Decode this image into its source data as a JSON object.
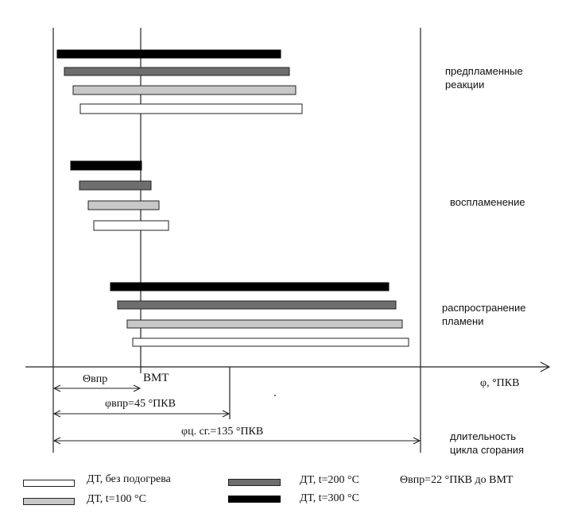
{
  "chart_data": {
    "type": "gantt",
    "x_axis_label": "φ, °ПКВ",
    "reference_label": "ВМТ",
    "groups": [
      {
        "name": "предпламенные реакции",
        "label_lines": [
          "предпламенные",
          "реакции"
        ]
      },
      {
        "name": "воспламенение",
        "label_lines": [
          "воспламенение"
        ]
      },
      {
        "name": "распространение пламени",
        "label_lines": [
          "распространение",
          "пламени"
        ]
      }
    ],
    "series": [
      {
        "name": "ДТ, без подогрева",
        "color": "#ffffff"
      },
      {
        "name": "ДТ, t=100 °C",
        "color": "#c8c8c8"
      },
      {
        "name": "ДТ, t=200 °C",
        "color": "#6e6e6e"
      },
      {
        "name": "ДТ, t=300 °C",
        "color": "#000000"
      }
    ],
    "annotations": {
      "theta_label": "Θвпр",
      "phi_inj_label": "φвпр=45 °ПКВ",
      "phi_cycle_label": "φц. сг.=135 °ПКВ",
      "cycle_duration_lines": [
        "длительность",
        "цикла сгорания"
      ],
      "theta_note": "Θвпр=22 °ПКВ до ВМТ"
    }
  }
}
